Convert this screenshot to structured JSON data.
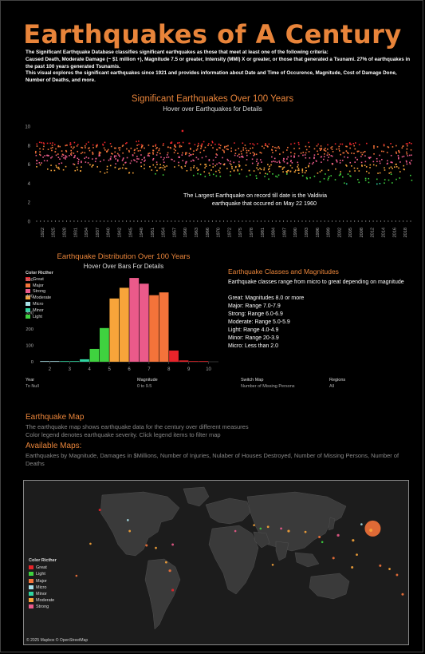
{
  "header": {
    "title": "Earthquakes of A Century",
    "intro": [
      "The Significant Earthquake Database classifies significant earthquakes as those that meet at least one of the following criteria:",
      "Caused Death, Moderate Damage (~ $1 million +), Magnitude 7.5 or greater, Intensity (MMI) X or greater, or those that generated a Tsunami. 27% of earthquakes in the past 100 years generated Tsunamis.",
      "This visual explores the significant earthquakes since 1921 and provides information about Date and Time of Occurence, Magnitude, Cost of Damage Done, Number of Deaths, and more."
    ]
  },
  "timeline": {
    "title": "Significant Earthquakes Over 100 Years",
    "subtitle": "Hover over Earthquakes for Details",
    "annotation_line1": "The Largest Earthquake on record till date is the Valdivia",
    "annotation_line2": "earthquake that occured on May 22  1960"
  },
  "histogram": {
    "title": "Earthquake Distribution Over 100 Years",
    "subtitle": "Hover Over Bars For Details",
    "legend_title": "Color Ricther",
    "legend": [
      {
        "label": "Great",
        "color": "#e8242a"
      },
      {
        "label": "Major",
        "color": "#f4733a"
      },
      {
        "label": "Strong",
        "color": "#ea5a8a"
      },
      {
        "label": "Moderate",
        "color": "#f7a43a"
      },
      {
        "label": "Micro",
        "color": "#a8e0e8"
      },
      {
        "label": "Minor",
        "color": "#2fd4a0"
      },
      {
        "label": "Light",
        "color": "#3fd23f"
      }
    ]
  },
  "classes": {
    "title": "Earthquake Classes and Magnitudes",
    "description": "Earthquake classes range from micro to great depending on magnitude",
    "items": [
      "Great: Magnitudes 8.0 or more",
      "Major: Range 7.0-7.9",
      "Strong: Range 6.0-6.9",
      "Moderate: Range 5.0-5.9",
      "Light: Range 4.0-4.9",
      "Minor: Range 20-3.9",
      "Micro: Less than 2.0"
    ]
  },
  "filters": [
    {
      "label": "Year",
      "value": "To Null"
    },
    {
      "label": "Magnitude",
      "value": "0 to 9.5"
    },
    {
      "label": "Switch Map",
      "value": "Number of Missing Persons"
    },
    {
      "label": "Regions",
      "value": "All"
    }
  ],
  "map_section": {
    "title": "Earthquake Map",
    "desc1": "The earthquake map shows earthquake data for the century over different measures",
    "desc2": "Color legend denotes earthquake severity. Click legend items to filter map",
    "available_title": "Available Maps:",
    "available_list": "Earthquakes by Magnitude, Damages in $Millions, Number of Injuries, Nulaber of Houses Destroyed, Number of Missing Persons, Number of Deaths",
    "legend_title": "Color Ricther",
    "legend": [
      {
        "label": "Great",
        "color": "#e8242a"
      },
      {
        "label": "Light",
        "color": "#3fd23f"
      },
      {
        "label": "Major",
        "color": "#f4733a"
      },
      {
        "label": "Micro",
        "color": "#a8e0e8"
      },
      {
        "label": "Minor",
        "color": "#2fd4a0"
      },
      {
        "label": "Moderate",
        "color": "#f7a43a"
      },
      {
        "label": "Strong",
        "color": "#ea5a8a"
      }
    ],
    "credit": "© 2025 Mapbox © OpenStreetMap"
  },
  "chart_data": [
    {
      "type": "scatter",
      "name": "timeline",
      "title": "Significant Earthquakes Over 100 Years",
      "y_ticks": [
        0,
        2,
        4,
        6,
        8,
        10
      ],
      "ylim": [
        0,
        10
      ],
      "xlim": [
        1921,
        2021
      ],
      "x_ticks": [
        "1922",
        "1925",
        "1928",
        "1931",
        "1934",
        "1937",
        "1940",
        "1942",
        "1945",
        "1948",
        "1951",
        "1954",
        "1957",
        "1960",
        "1963",
        "1966",
        "1970",
        "1972",
        "1975",
        "1978",
        "1981",
        "1984",
        "1987",
        "1990",
        "1993",
        "1996",
        "1999",
        "2002",
        "2005",
        "2008",
        "2012",
        "2014",
        "2016",
        "2018"
      ],
      "band_high": [
        8.4,
        8.3,
        8.2,
        8.3,
        8.4,
        8.1,
        8.3,
        8.2,
        8.3,
        8.5,
        8.1,
        8.3,
        8.4,
        8.4,
        8.3,
        8.4,
        8.2,
        8.1,
        8.3,
        8.2,
        8.2,
        8.3,
        8.0,
        8.3,
        8.5,
        8.3,
        8.2,
        8.3,
        8.4,
        8.3,
        8.5,
        8.1,
        8.2,
        8.3
      ],
      "band_low": [
        5.2,
        5.1,
        5.3,
        5.1,
        5.0,
        5.2,
        5.0,
        5.0,
        4.9,
        5.0,
        4.9,
        4.8,
        4.8,
        4.9,
        4.7,
        4.6,
        4.6,
        4.7,
        4.5,
        4.5,
        4.4,
        4.4,
        4.3,
        4.3,
        4.2,
        4.1,
        4.0,
        4.0,
        3.9,
        3.9,
        3.8,
        3.9,
        3.9,
        4.0
      ],
      "notable": {
        "year": 1960,
        "magnitude": 9.5
      }
    },
    {
      "type": "bar",
      "name": "histogram",
      "title": "Earthquake Distribution Over 100 Years",
      "xlabel": "",
      "ylabel": "",
      "x_ticks": [
        2,
        3,
        4,
        5,
        6,
        7,
        8,
        9,
        10
      ],
      "y_ticks": [
        0,
        100,
        200,
        300,
        400,
        500
      ],
      "xlim": [
        1.5,
        10.5
      ],
      "ylim": [
        0,
        520
      ],
      "bins": [
        {
          "start": 1.5,
          "value": 2,
          "color": "#a8e0e8"
        },
        {
          "start": 2.0,
          "value": 2,
          "color": "#a8e0e8"
        },
        {
          "start": 2.5,
          "value": 2,
          "color": "#2fd4a0"
        },
        {
          "start": 3.0,
          "value": 4,
          "color": "#2fd4a0"
        },
        {
          "start": 3.5,
          "value": 15,
          "color": "#2fd4a0"
        },
        {
          "start": 4.0,
          "value": 78,
          "color": "#3fd23f"
        },
        {
          "start": 4.5,
          "value": 205,
          "color": "#3fd23f"
        },
        {
          "start": 5.0,
          "value": 385,
          "color": "#f7a43a"
        },
        {
          "start": 5.5,
          "value": 450,
          "color": "#f7a43a"
        },
        {
          "start": 6.0,
          "value": 510,
          "color": "#ea5a8a"
        },
        {
          "start": 6.5,
          "value": 475,
          "color": "#ea5a8a"
        },
        {
          "start": 7.0,
          "value": 405,
          "color": "#f4733a"
        },
        {
          "start": 7.5,
          "value": 422,
          "color": "#f4733a"
        },
        {
          "start": 8.0,
          "value": 68,
          "color": "#e8242a"
        },
        {
          "start": 8.5,
          "value": 8,
          "color": "#e8242a"
        },
        {
          "start": 9.0,
          "value": 3,
          "color": "#e8242a"
        },
        {
          "start": 9.5,
          "value": 1,
          "color": "#e8242a"
        }
      ]
    },
    {
      "type": "scatter",
      "name": "map",
      "points": [
        {
          "lon": 142,
          "lat": 38,
          "size": 10,
          "color": "#f4733a"
        },
        {
          "lon": 140,
          "lat": 36,
          "size": 2,
          "color": "#f7a43a"
        },
        {
          "lon": 121,
          "lat": 24,
          "size": 1.6,
          "color": "#f7a43a"
        },
        {
          "lon": 105,
          "lat": 30,
          "size": 1.6,
          "color": "#ea5a8a"
        },
        {
          "lon": 100,
          "lat": 3,
          "size": 1.5,
          "color": "#f4733a"
        },
        {
          "lon": 120,
          "lat": -8,
          "size": 1.5,
          "color": "#f7a43a"
        },
        {
          "lon": 85,
          "lat": 28,
          "size": 1.5,
          "color": "#f4733a"
        },
        {
          "lon": 70,
          "lat": 34,
          "size": 1.4,
          "color": "#f7a43a"
        },
        {
          "lon": 52,
          "lat": 35,
          "size": 1.6,
          "color": "#f7a43a"
        },
        {
          "lon": 44,
          "lat": 38,
          "size": 1.4,
          "color": "#ea5a8a"
        },
        {
          "lon": 30,
          "lat": 40,
          "size": 1.4,
          "color": "#f7a43a"
        },
        {
          "lon": 22,
          "lat": 38,
          "size": 1.3,
          "color": "#3fd23f"
        },
        {
          "lon": 15,
          "lat": 42,
          "size": 1.3,
          "color": "#f7a43a"
        },
        {
          "lon": -5,
          "lat": 35,
          "size": 1.3,
          "color": "#ea5a8a"
        },
        {
          "lon": -75,
          "lat": -12,
          "size": 1.6,
          "color": "#f4733a"
        },
        {
          "lon": -72,
          "lat": -35,
          "size": 1.6,
          "color": "#e8242a"
        },
        {
          "lon": -79,
          "lat": -2,
          "size": 1.4,
          "color": "#f7a43a"
        },
        {
          "lon": -90,
          "lat": 15,
          "size": 1.4,
          "color": "#f7a43a"
        },
        {
          "lon": -100,
          "lat": 18,
          "size": 1.5,
          "color": "#f4733a"
        },
        {
          "lon": -118,
          "lat": 35,
          "size": 1.4,
          "color": "#f7a43a"
        },
        {
          "lon": -150,
          "lat": 60,
          "size": 1.5,
          "color": "#e8242a"
        },
        {
          "lon": -72,
          "lat": 19,
          "size": 1.4,
          "color": "#ea5a8a"
        },
        {
          "lon": 174,
          "lat": -40,
          "size": 1.5,
          "color": "#f4733a"
        },
        {
          "lon": 168,
          "lat": -17,
          "size": 1.4,
          "color": "#f4733a"
        },
        {
          "lon": 150,
          "lat": -6,
          "size": 1.5,
          "color": "#f4733a"
        },
        {
          "lon": 160,
          "lat": -10,
          "size": 1.4,
          "color": "#f7a43a"
        },
        {
          "lon": 125,
          "lat": 7,
          "size": 1.4,
          "color": "#f7a43a"
        },
        {
          "lon": -160,
          "lat": 20,
          "size": 1.3,
          "color": "#f7a43a"
        },
        {
          "lon": -175,
          "lat": -18,
          "size": 1.3,
          "color": "#f4733a"
        },
        {
          "lon": 88,
          "lat": 22,
          "size": 1.3,
          "color": "#3fd23f"
        },
        {
          "lon": -120,
          "lat": 48,
          "size": 1.3,
          "color": "#a8e0e8"
        },
        {
          "lon": 35,
          "lat": -5,
          "size": 1.3,
          "color": "#f7a43a"
        },
        {
          "lon": 130,
          "lat": 43,
          "size": 1.3,
          "color": "#a8e0e8"
        }
      ]
    }
  ]
}
